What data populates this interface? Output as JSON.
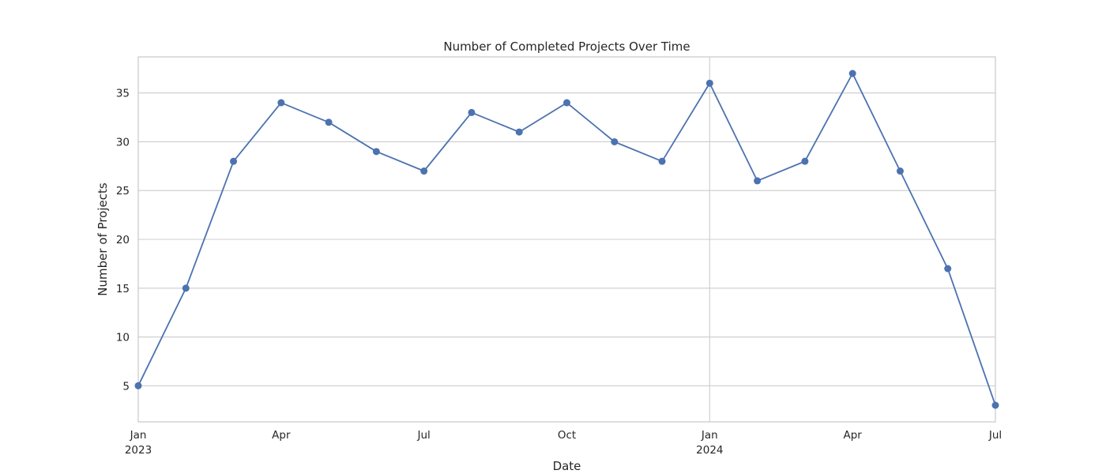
{
  "chart_data": {
    "type": "line",
    "title": "Number of Completed Projects Over Time",
    "xlabel": "Date",
    "ylabel": "Number of Projects",
    "x": [
      "2023-01",
      "2023-02",
      "2023-03",
      "2023-04",
      "2023-05",
      "2023-06",
      "2023-07",
      "2023-08",
      "2023-09",
      "2023-10",
      "2023-11",
      "2023-12",
      "2024-01",
      "2024-02",
      "2024-03",
      "2024-04",
      "2024-05",
      "2024-06",
      "2024-07"
    ],
    "series": [
      {
        "values": [
          5,
          15,
          28,
          34,
          32,
          29,
          27,
          33,
          31,
          34,
          30,
          28,
          36,
          26,
          28,
          37,
          27,
          17,
          3
        ]
      }
    ],
    "ylim": [
      1.3,
      38.7
    ],
    "yticks": [
      5,
      10,
      15,
      20,
      25,
      30,
      35
    ],
    "xticks": [
      {
        "date": "2023-01",
        "label": "Jan",
        "year": "2023"
      },
      {
        "date": "2023-04",
        "label": "Apr",
        "year": ""
      },
      {
        "date": "2023-07",
        "label": "Jul",
        "year": ""
      },
      {
        "date": "2023-10",
        "label": "Oct",
        "year": ""
      },
      {
        "date": "2024-01",
        "label": "Jan",
        "year": "2024"
      },
      {
        "date": "2024-04",
        "label": "Apr",
        "year": ""
      },
      {
        "date": "2024-07",
        "label": "Jul",
        "year": ""
      }
    ],
    "grid": true,
    "legend": "none",
    "colors": {
      "series": "#4c72b0",
      "grid": "#cccccc",
      "text": "#262626"
    }
  }
}
